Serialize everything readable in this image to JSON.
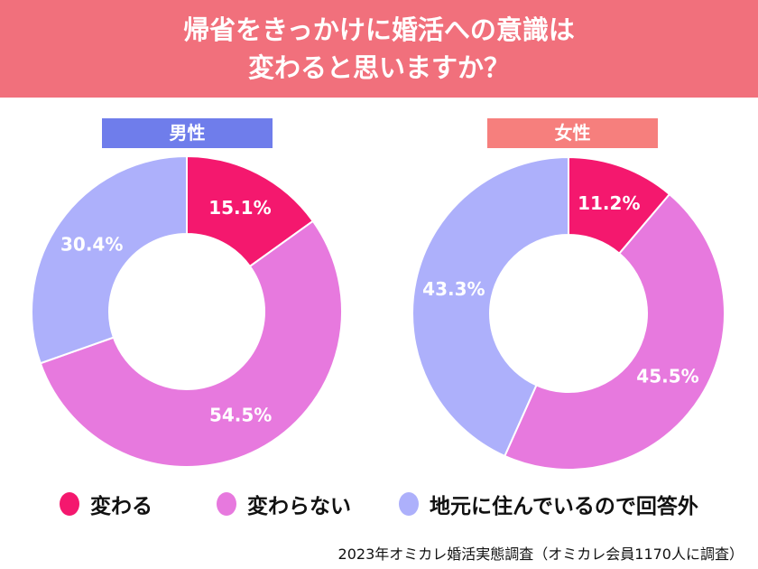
{
  "chart_data": [
    {
      "type": "pie",
      "variant": "donut",
      "title": "男性",
      "categories": [
        "変わる",
        "変わらない",
        "地元に住んでいるので回答外"
      ],
      "values": [
        15.1,
        54.5,
        30.4
      ],
      "labels": [
        "15.1%",
        "54.5%",
        "30.4%"
      ]
    },
    {
      "type": "pie",
      "variant": "donut",
      "title": "女性",
      "categories": [
        "変わる",
        "変わらない",
        "地元に住んでいるので回答外"
      ],
      "values": [
        11.2,
        45.5,
        43.3
      ],
      "labels": [
        "11.2%",
        "45.5%",
        "43.3%"
      ]
    }
  ],
  "header": {
    "line1": "帰省をきっかけに婚活への意識は",
    "line2": "変わると思いますか？"
  },
  "legend": [
    {
      "label": "変わる",
      "color": "#f4186e"
    },
    {
      "label": "変わらない",
      "color": "#e779de"
    },
    {
      "label": "地元に住んでいるので回答外",
      "color": "#adb0fb"
    }
  ],
  "colors": {
    "header": "#f1707c",
    "male_label": "#6f7deb",
    "female_label": "#f67f7d"
  },
  "source_note": "2023年オミカレ婚活実態調査（オミカレ会員1170人に調査）"
}
